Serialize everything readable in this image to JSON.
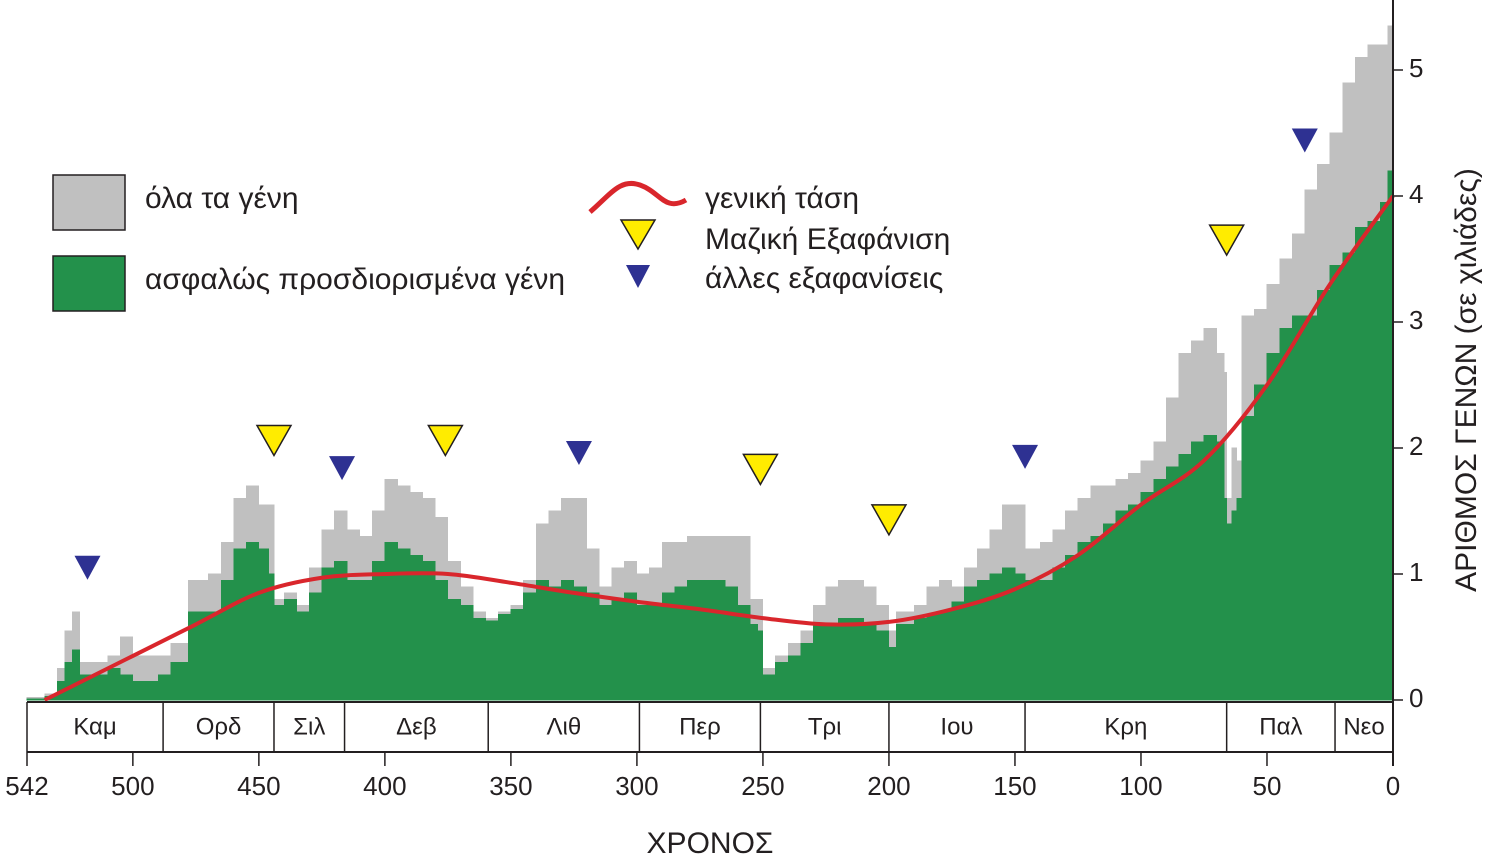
{
  "chart_data": {
    "type": "area",
    "step": true,
    "x_label": "ΧΡΟΝΟΣ",
    "y_label": "ΑΡΙΘΜΟΣ ΓΕΝΩΝ (σε χιλιάδες)",
    "xlim": [
      542,
      0
    ],
    "xticks": [
      542,
      500,
      450,
      400,
      350,
      300,
      250,
      200,
      150,
      100,
      50,
      0
    ],
    "ylim": [
      0,
      5.5
    ],
    "yticks": [
      0,
      1,
      2,
      3,
      4,
      5
    ],
    "x": [
      542,
      535,
      530,
      527,
      524,
      521,
      515,
      510,
      505,
      500,
      490,
      485,
      478,
      470,
      465,
      460,
      455,
      450,
      446,
      444,
      440,
      435,
      430,
      425,
      420,
      415,
      410,
      405,
      400,
      395,
      390,
      385,
      380,
      375,
      370,
      365,
      360,
      355,
      350,
      345,
      340,
      335,
      330,
      325,
      320,
      315,
      310,
      305,
      300,
      295,
      290,
      285,
      280,
      275,
      270,
      265,
      260,
      255,
      252,
      250,
      245,
      240,
      235,
      230,
      225,
      220,
      215,
      210,
      205,
      200,
      197,
      190,
      185,
      180,
      175,
      170,
      165,
      160,
      155,
      150,
      146,
      140,
      135,
      130,
      125,
      120,
      115,
      110,
      105,
      100,
      95,
      90,
      85,
      80,
      75,
      70,
      67,
      66,
      64,
      62,
      60,
      55,
      50,
      45,
      40,
      35,
      30,
      25,
      20,
      15,
      10,
      5,
      2,
      0
    ],
    "series": [
      {
        "name": "όλα τα γένη",
        "color": "#c0c0c0",
        "values": [
          0.02,
          0.05,
          0.25,
          0.55,
          0.7,
          0.3,
          0.3,
          0.35,
          0.5,
          0.35,
          0.35,
          0.45,
          0.95,
          1.0,
          1.25,
          1.6,
          1.7,
          1.55,
          1.55,
          0.8,
          0.85,
          0.75,
          1.05,
          1.35,
          1.5,
          1.35,
          1.3,
          1.5,
          1.75,
          1.7,
          1.65,
          1.6,
          1.45,
          1.1,
          0.9,
          0.7,
          0.65,
          0.7,
          0.75,
          0.95,
          1.4,
          1.5,
          1.6,
          1.6,
          1.2,
          0.9,
          1.05,
          1.1,
          1.0,
          1.05,
          1.25,
          1.25,
          1.3,
          1.3,
          1.3,
          1.3,
          1.3,
          0.8,
          0.8,
          0.25,
          0.35,
          0.45,
          0.55,
          0.75,
          0.9,
          0.95,
          0.95,
          0.9,
          0.75,
          0.55,
          0.7,
          0.75,
          0.9,
          0.95,
          0.9,
          1.05,
          1.2,
          1.35,
          1.55,
          1.55,
          1.2,
          1.25,
          1.35,
          1.5,
          1.6,
          1.7,
          1.7,
          1.75,
          1.8,
          1.9,
          2.05,
          2.4,
          2.75,
          2.85,
          2.95,
          2.75,
          2.6,
          1.6,
          2.0,
          1.9,
          3.05,
          3.1,
          3.3,
          3.5,
          3.7,
          4.05,
          4.25,
          4.5,
          4.9,
          5.1,
          5.2,
          5.2,
          5.35,
          5.35
        ]
      },
      {
        "name": "ασφαλώς προσδιορισμένα γένη",
        "color": "#23914b",
        "values": [
          0.01,
          0.03,
          0.15,
          0.3,
          0.4,
          0.2,
          0.2,
          0.25,
          0.2,
          0.15,
          0.2,
          0.3,
          0.7,
          0.7,
          0.95,
          1.2,
          1.25,
          1.2,
          1.0,
          0.75,
          0.8,
          0.7,
          0.85,
          1.05,
          1.1,
          0.95,
          0.95,
          1.1,
          1.25,
          1.2,
          1.15,
          1.1,
          0.95,
          0.8,
          0.75,
          0.65,
          0.63,
          0.68,
          0.72,
          0.85,
          0.95,
          0.9,
          0.95,
          0.9,
          0.85,
          0.75,
          0.8,
          0.85,
          0.75,
          0.75,
          0.85,
          0.9,
          0.95,
          0.95,
          0.95,
          0.9,
          0.75,
          0.6,
          0.55,
          0.2,
          0.3,
          0.35,
          0.45,
          0.6,
          0.6,
          0.65,
          0.65,
          0.6,
          0.55,
          0.42,
          0.6,
          0.65,
          0.68,
          0.7,
          0.78,
          0.9,
          0.95,
          1.0,
          1.05,
          1.0,
          0.95,
          0.95,
          1.05,
          1.15,
          1.25,
          1.3,
          1.4,
          1.5,
          1.55,
          1.65,
          1.75,
          1.85,
          1.95,
          2.05,
          2.1,
          2.05,
          1.6,
          1.4,
          1.5,
          1.6,
          2.25,
          2.5,
          2.75,
          2.95,
          3.05,
          3.05,
          3.25,
          3.45,
          3.55,
          3.75,
          3.8,
          3.95,
          4.2,
          4.2
        ]
      }
    ],
    "trend": {
      "name": "γενική τάση",
      "color": "#d9262c",
      "x": [
        535,
        500,
        475,
        450,
        425,
        400,
        375,
        350,
        325,
        300,
        275,
        250,
        225,
        200,
        175,
        150,
        125,
        100,
        75,
        50,
        25,
        0
      ],
      "values": [
        0,
        0.35,
        0.6,
        0.85,
        0.97,
        1.0,
        1.0,
        0.93,
        0.85,
        0.78,
        0.72,
        0.65,
        0.6,
        0.62,
        0.72,
        0.88,
        1.15,
        1.55,
        1.9,
        2.5,
        3.3,
        4.0
      ]
    },
    "events": [
      {
        "name": "Μαζική Εξαφάνιση",
        "color": "#ffec00",
        "x": [
          444,
          376,
          251,
          200,
          66
        ],
        "values": [
          2.06,
          2.06,
          1.83,
          1.43,
          3.65
        ]
      },
      {
        "name": "άλλες εξαφανίσεις",
        "color": "#2e3192",
        "x": [
          518,
          417,
          323,
          146,
          35
        ],
        "values": [
          1.05,
          1.84,
          1.96,
          1.93,
          4.44
        ]
      }
    ],
    "periods": {
      "names": [
        "Καμ",
        "Ορδ",
        "Σιλ",
        "Δεβ",
        "Λιθ",
        "Περ",
        "Τρι",
        "Ιου",
        "Κρη",
        "Παλ",
        "Νεο"
      ],
      "boundaries": [
        542,
        488,
        444,
        416,
        359,
        299,
        251,
        200,
        146,
        66,
        23,
        0
      ]
    }
  }
}
